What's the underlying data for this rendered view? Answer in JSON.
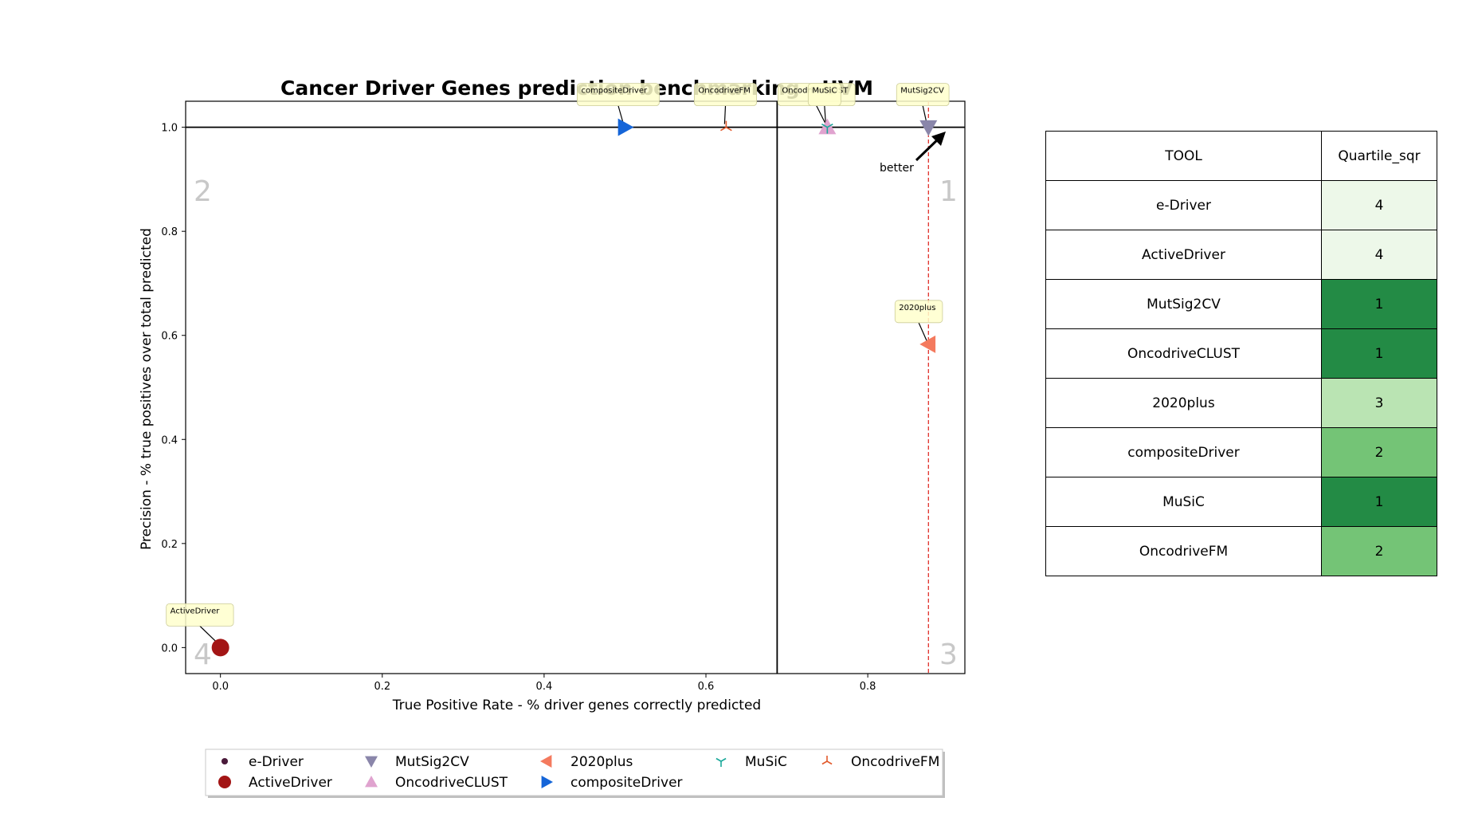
{
  "chart_data": {
    "type": "scatter",
    "title": "Cancer Driver Genes prediction benchmarking - UVM",
    "xlabel": "True Positive Rate - % driver genes correctly predicted",
    "ylabel": "Precision - % true positives over total predicted",
    "xlim": [
      -0.043,
      0.92
    ],
    "ylim": [
      -0.05,
      1.05
    ],
    "xticks": [
      "0.0",
      "0.2",
      "0.4",
      "0.6",
      "0.8"
    ],
    "yticks": [
      "0.0",
      "0.2",
      "0.4",
      "0.6",
      "0.8",
      "1.0"
    ],
    "grid": false,
    "legend_position": "bottom",
    "quadrant_labels": [
      "1",
      "2",
      "3",
      "4"
    ],
    "mean_lines": {
      "x": 0.688,
      "y": 1.0
    },
    "pareto_x": 0.875,
    "arrow_label": "better",
    "series": [
      {
        "name": "e-Driver",
        "marker": "dot",
        "color": "#4a1a3a",
        "x": 0.0,
        "y": 0.0
      },
      {
        "name": "ActiveDriver",
        "marker": "circle",
        "color": "#a31515",
        "x": 0.0,
        "y": 0.0
      },
      {
        "name": "MutSig2CV",
        "marker": "triangle-down",
        "color": "#8a86aa",
        "x": 0.875,
        "y": 1.0
      },
      {
        "name": "OncodriveCLUST",
        "marker": "triangle-up",
        "color": "#e0a3cf",
        "x": 0.75,
        "y": 1.0
      },
      {
        "name": "2020plus",
        "marker": "triangle-left",
        "color": "#f47a5e",
        "x": 0.875,
        "y": 0.583
      },
      {
        "name": "compositeDriver",
        "marker": "triangle-right",
        "color": "#1565d8",
        "x": 0.5,
        "y": 1.0
      },
      {
        "name": "MuSiC",
        "marker": "tri-down",
        "color": "#1aa89a",
        "x": 0.75,
        "y": 1.0
      },
      {
        "name": "OncodriveFM",
        "marker": "tri-up",
        "color": "#e25a2c",
        "x": 0.625,
        "y": 1.0
      }
    ],
    "annotations": [
      {
        "text": "ActiveDriver",
        "x": 0.0,
        "y": 0.0
      },
      {
        "text": "compositeDriver",
        "x": 0.5,
        "y": 1.0
      },
      {
        "text": "OncodriveFM",
        "x": 0.625,
        "y": 1.0
      },
      {
        "text": "OncodriveCLUST",
        "x": 0.75,
        "y": 1.0
      },
      {
        "text": "MuSiC",
        "x": 0.75,
        "y": 1.0
      },
      {
        "text": "MutSig2CV",
        "x": 0.875,
        "y": 1.0
      },
      {
        "text": "2020plus",
        "x": 0.875,
        "y": 0.583
      }
    ]
  },
  "table": {
    "headers": [
      "TOOL",
      "Quartile_sqr"
    ],
    "rows": [
      {
        "tool": "e-Driver",
        "quartile": "4",
        "color": "#edf8e9"
      },
      {
        "tool": "ActiveDriver",
        "quartile": "4",
        "color": "#edf8e9"
      },
      {
        "tool": "MutSig2CV",
        "quartile": "1",
        "color": "#238b45"
      },
      {
        "tool": "OncodriveCLUST",
        "quartile": "1",
        "color": "#238b45"
      },
      {
        "tool": "2020plus",
        "quartile": "3",
        "color": "#bae4b3"
      },
      {
        "tool": "compositeDriver",
        "quartile": "2",
        "color": "#74c476"
      },
      {
        "tool": "MuSiC",
        "quartile": "1",
        "color": "#238b45"
      },
      {
        "tool": "OncodriveFM",
        "quartile": "2",
        "color": "#74c476"
      }
    ]
  }
}
